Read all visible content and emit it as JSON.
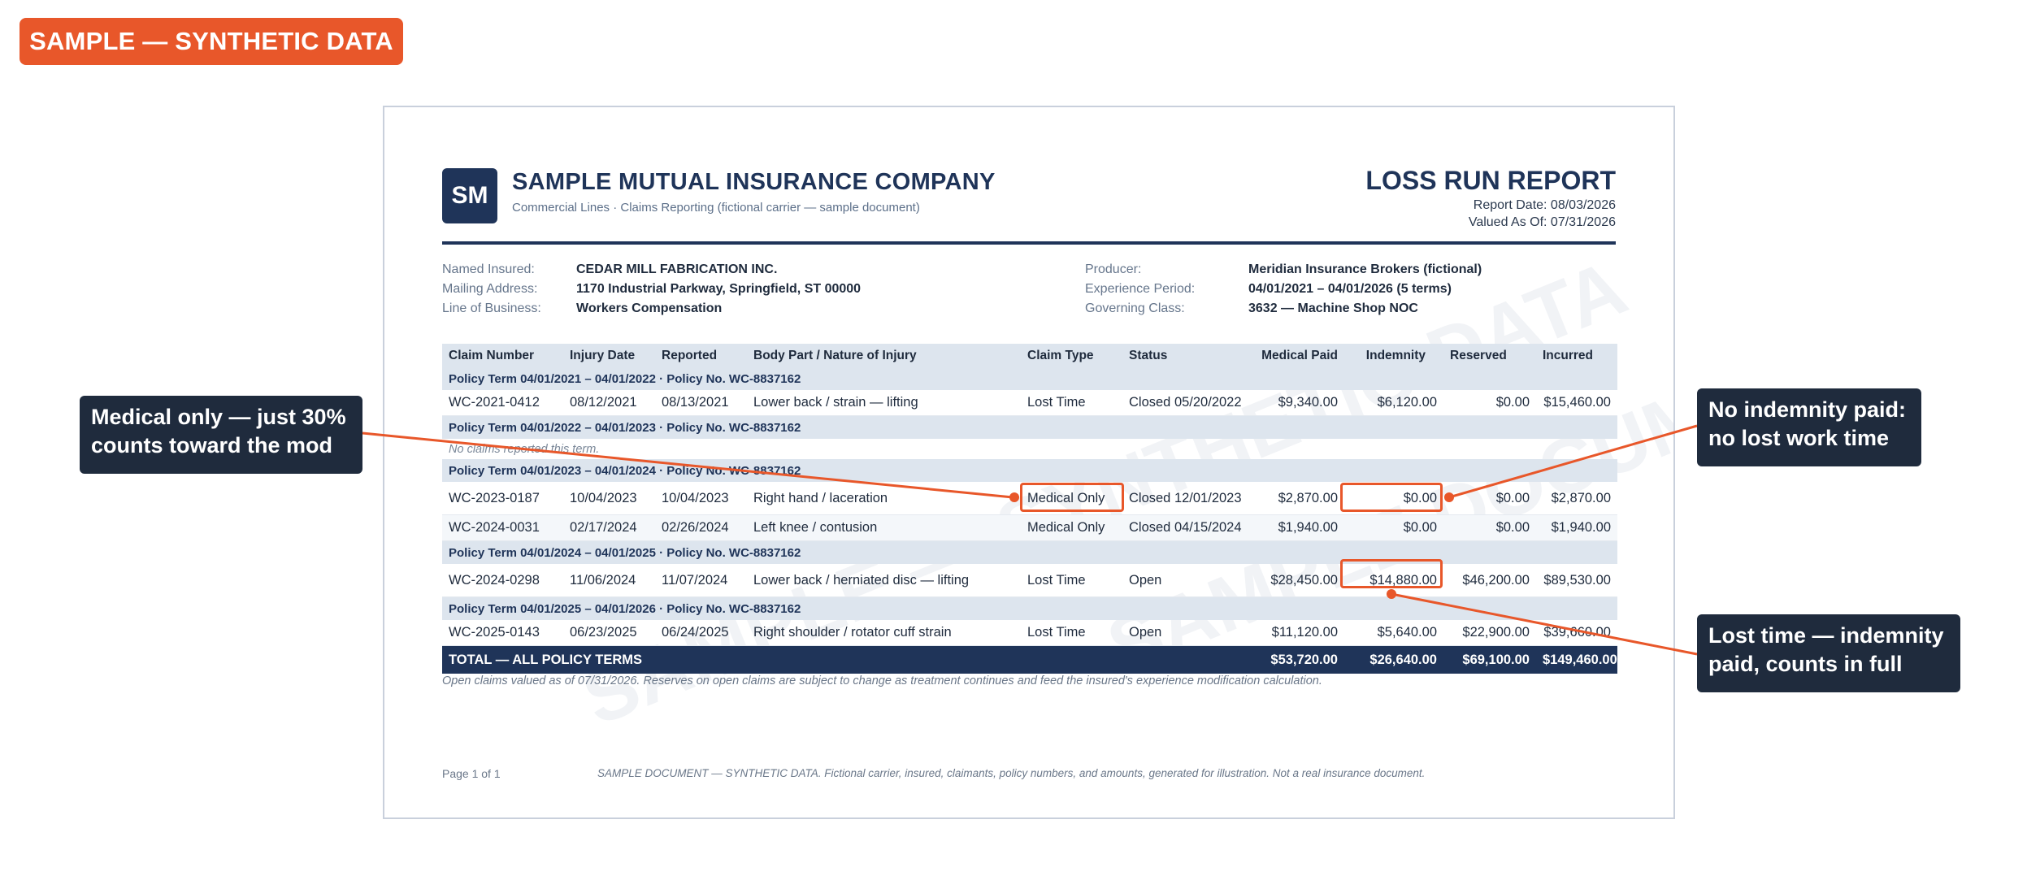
{
  "badge": "SAMPLE — SYNTHETIC DATA",
  "watermark_text": "SAMPLE — SYNTHETIC DATA",
  "watermark_text2": "SAMPLE DOCUMENT",
  "header": {
    "logo": "SM",
    "company": "SAMPLE MUTUAL INSURANCE COMPANY",
    "tagline": "Commercial Lines · Claims Reporting  (fictional carrier — sample document)",
    "title": "LOSS RUN REPORT",
    "report_date": "Report Date: 08/03/2026",
    "valued_as": "Valued As Of: 07/31/2026"
  },
  "info": {
    "named_insured_label": "Named Insured:",
    "named_insured": "CEDAR MILL FABRICATION INC.",
    "mailing_label": "Mailing Address:",
    "mailing": "1170 Industrial Parkway, Springfield, ST 00000",
    "lob_label": "Line of Business:",
    "lob": "Workers Compensation",
    "producer_label": "Producer:",
    "producer": "Meridian Insurance Brokers (fictional)",
    "experience_label": "Experience Period:",
    "experience": "04/01/2021 – 04/01/2026 (5 terms)",
    "class_label": "Governing Class:",
    "class": "3632 — Machine Shop NOC"
  },
  "table": {
    "headers": [
      "Claim Number",
      "Injury Date",
      "Reported",
      "Body Part / Nature of Injury",
      "Claim Type",
      "Status",
      "Medical Paid",
      "Indemnity",
      "Reserved",
      "Incurred"
    ],
    "term1": "Policy Term 04/01/2021 – 04/01/2022  ·  Policy No. WC-8837162",
    "row1": [
      "WC-2021-0412",
      "08/12/2021",
      "08/13/2021",
      "Lower back / strain — lifting",
      "Lost Time",
      "Closed 05/20/2022",
      "$9,340.00",
      "$6,120.00",
      "$0.00",
      "$15,460.00"
    ],
    "term2": "Policy Term 04/01/2022 – 04/01/2023  ·  Policy No. WC-8837162",
    "no_claims": "No claims reported this term.",
    "term3": "Policy Term 04/01/2023 – 04/01/2024  ·  Policy No. WC-8837162",
    "row2": [
      "WC-2023-0187",
      "10/04/2023",
      "10/04/2023",
      "Right hand / laceration",
      "Medical Only",
      "Closed 12/01/2023",
      "$2,870.00",
      "$0.00",
      "$0.00",
      "$2,870.00"
    ],
    "row3": [
      "WC-2024-0031",
      "02/17/2024",
      "02/26/2024",
      "Left knee / contusion",
      "Medical Only",
      "Closed 04/15/2024",
      "$1,940.00",
      "$0.00",
      "$0.00",
      "$1,940.00"
    ],
    "term4": "Policy Term 04/01/2024 – 04/01/2025  ·  Policy No. WC-8837162",
    "row4": [
      "WC-2024-0298",
      "11/06/2024",
      "11/07/2024",
      "Lower back / herniated disc — lifting",
      "Lost Time",
      "Open",
      "$28,450.00",
      "$14,880.00",
      "$46,200.00",
      "$89,530.00"
    ],
    "term5": "Policy Term 04/01/2025 – 04/01/2026  ·  Policy No. WC-8837162",
    "row5": [
      "WC-2025-0143",
      "06/23/2025",
      "06/24/2025",
      "Right shoulder / rotator cuff strain",
      "Lost Time",
      "Open",
      "$11,120.00",
      "$5,640.00",
      "$22,900.00",
      "$39,660.00"
    ],
    "total": [
      "TOTAL — ALL POLICY TERMS",
      "$53,720.00",
      "$26,640.00",
      "$69,100.00",
      "$149,460.00"
    ]
  },
  "footnote": "Open claims valued as of 07/31/2026. Reserves on open claims are subject to change as treatment continues and feed the insured's experience modification calculation.",
  "page_no": "Page 1 of 1",
  "disclaimer": "SAMPLE DOCUMENT — SYNTHETIC DATA. Fictional carrier, insured, claimants, policy numbers, and amounts, generated for illustration. Not a real insurance document.",
  "callouts": {
    "medical_line1": "Medical only — just 30%",
    "medical_line2": "counts toward the mod",
    "no_indemnity_line1": "No indemnity paid:",
    "no_indemnity_line2": "no lost work time",
    "lost_time_line1": "Lost time — indemnity",
    "lost_time_line2": "paid, counts in full"
  },
  "accent_color": "#e8572a",
  "navy_color": "#1f3459"
}
